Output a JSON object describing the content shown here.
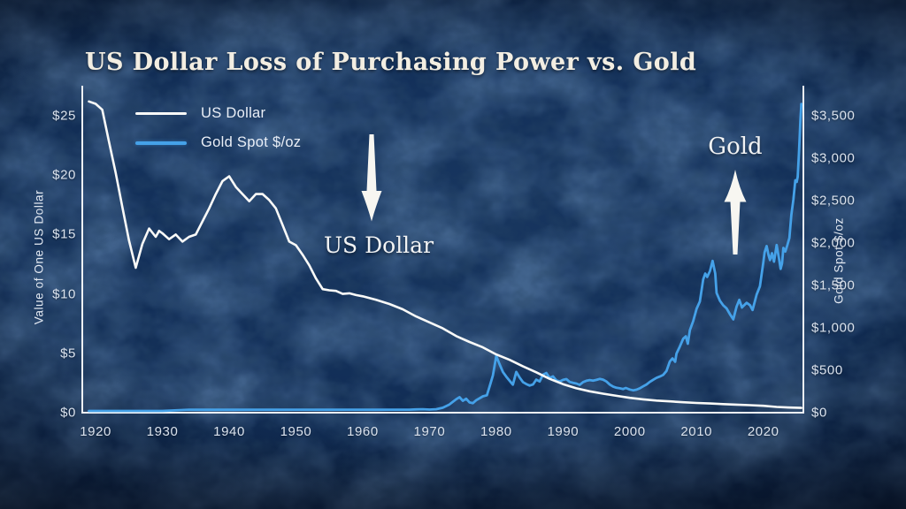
{
  "title": "US Dollar Loss of Purchasing Power vs. Gold",
  "legend": {
    "items": [
      {
        "label": "US Dollar",
        "color": "#fafaf8"
      },
      {
        "label": "Gold Spot $/oz",
        "color": "#45a1e8"
      }
    ]
  },
  "annotations": {
    "dollar": {
      "label": "US Dollar",
      "arrow": "down"
    },
    "gold": {
      "label": "Gold",
      "arrow": "up"
    }
  },
  "colors": {
    "background": "#12294d",
    "accent_blue": "#45a1e8",
    "line_white": "#fafaf8",
    "tick_text": "#dbe3ee",
    "title_text": "#f3eee2"
  },
  "chart_data": {
    "type": "line",
    "title": "US Dollar Loss of Purchasing Power vs. Gold",
    "grid": false,
    "legend_position": "top-left-inside",
    "x_range": [
      1918,
      2026
    ],
    "x_axis": {
      "ticks": [
        {
          "value": 1920,
          "label": "1920"
        },
        {
          "value": 1930,
          "label": "1930"
        },
        {
          "value": 1940,
          "label": "1940"
        },
        {
          "value": 1950,
          "label": "1950"
        },
        {
          "value": 1960,
          "label": "1960"
        },
        {
          "value": 1970,
          "label": "1970"
        },
        {
          "value": 1980,
          "label": "1980"
        },
        {
          "value": 1990,
          "label": "1990"
        },
        {
          "value": 2000,
          "label": "2000"
        },
        {
          "value": 2010,
          "label": "2010"
        },
        {
          "value": 2020,
          "label": "2020"
        }
      ]
    },
    "left_axis": {
      "label": "Value of One US Dollar",
      "max": 27.3,
      "ticks": [
        {
          "value": 25,
          "label": "$25"
        },
        {
          "value": 20,
          "label": "$20"
        },
        {
          "value": 15,
          "label": "$15"
        },
        {
          "value": 10,
          "label": "$10"
        },
        {
          "value": 5,
          "label": "$5"
        },
        {
          "value": 0,
          "label": "$0"
        }
      ]
    },
    "right_axis": {
      "label": "Gold Spot $/oz",
      "max": 3823,
      "ticks": [
        {
          "value": 3500,
          "label": "$3,500"
        },
        {
          "value": 3000,
          "label": "$3,000"
        },
        {
          "value": 2500,
          "label": "$2,500"
        },
        {
          "value": 2000,
          "label": "$2,000"
        },
        {
          "value": 1500,
          "label": "$1,500"
        },
        {
          "value": 1000,
          "label": "$1,000"
        },
        {
          "value": 500,
          "label": "$500"
        },
        {
          "value": 0,
          "label": "$0"
        }
      ]
    },
    "series": [
      {
        "name": "US Dollar",
        "axis": "left",
        "color": "#fafaf8",
        "width": 2.6,
        "points": [
          [
            1919,
            26.2
          ],
          [
            1920,
            26.0
          ],
          [
            1921,
            25.5
          ],
          [
            1922,
            22.8
          ],
          [
            1923,
            20.2
          ],
          [
            1924,
            17.3
          ],
          [
            1925,
            14.5
          ],
          [
            1926,
            12.2
          ],
          [
            1927,
            14.2
          ],
          [
            1928,
            15.5
          ],
          [
            1929,
            14.8
          ],
          [
            1929.5,
            15.3
          ],
          [
            1930,
            15.1
          ],
          [
            1931,
            14.6
          ],
          [
            1932,
            15.0
          ],
          [
            1933,
            14.4
          ],
          [
            1934,
            14.8
          ],
          [
            1935,
            15.0
          ],
          [
            1936,
            16.1
          ],
          [
            1937,
            17.2
          ],
          [
            1938,
            18.4
          ],
          [
            1939,
            19.5
          ],
          [
            1940,
            19.9
          ],
          [
            1941,
            19.0
          ],
          [
            1942,
            18.4
          ],
          [
            1943,
            17.8
          ],
          [
            1944,
            18.4
          ],
          [
            1945,
            18.4
          ],
          [
            1946,
            17.9
          ],
          [
            1947,
            17.2
          ],
          [
            1948,
            15.8
          ],
          [
            1949,
            14.4
          ],
          [
            1950,
            14.1
          ],
          [
            1951,
            13.3
          ],
          [
            1952,
            12.4
          ],
          [
            1953,
            11.3
          ],
          [
            1954,
            10.4
          ],
          [
            1955,
            10.3
          ],
          [
            1956,
            10.25
          ],
          [
            1957,
            10.0
          ],
          [
            1958,
            10.05
          ],
          [
            1959,
            9.9
          ],
          [
            1960,
            9.8
          ],
          [
            1962,
            9.5
          ],
          [
            1964,
            9.15
          ],
          [
            1966,
            8.7
          ],
          [
            1968,
            8.1
          ],
          [
            1970,
            7.6
          ],
          [
            1972,
            7.1
          ],
          [
            1974,
            6.45
          ],
          [
            1976,
            5.95
          ],
          [
            1978,
            5.5
          ],
          [
            1980,
            4.9
          ],
          [
            1982,
            4.45
          ],
          [
            1984,
            3.9
          ],
          [
            1986,
            3.4
          ],
          [
            1988,
            2.85
          ],
          [
            1990,
            2.4
          ],
          [
            1992,
            2.05
          ],
          [
            1994,
            1.8
          ],
          [
            1996,
            1.6
          ],
          [
            1998,
            1.42
          ],
          [
            2000,
            1.25
          ],
          [
            2002,
            1.12
          ],
          [
            2004,
            1.02
          ],
          [
            2006,
            0.95
          ],
          [
            2008,
            0.88
          ],
          [
            2010,
            0.82
          ],
          [
            2012,
            0.77
          ],
          [
            2014,
            0.72
          ],
          [
            2016,
            0.68
          ],
          [
            2018,
            0.63
          ],
          [
            2020,
            0.58
          ],
          [
            2022,
            0.48
          ],
          [
            2024,
            0.43
          ],
          [
            2025.7,
            0.4
          ]
        ]
      },
      {
        "name": "Gold Spot $/oz",
        "axis": "right",
        "color": "#45a1e8",
        "width": 2.8,
        "points": [
          [
            1919,
            21
          ],
          [
            1930,
            21
          ],
          [
            1934,
            35
          ],
          [
            1940,
            34
          ],
          [
            1950,
            35
          ],
          [
            1960,
            35
          ],
          [
            1967,
            35
          ],
          [
            1968,
            39
          ],
          [
            1969,
            41
          ],
          [
            1970,
            36
          ],
          [
            1971,
            41
          ],
          [
            1972,
            58
          ],
          [
            1973,
            97
          ],
          [
            1974,
            158
          ],
          [
            1974.5,
            183
          ],
          [
            1975,
            140
          ],
          [
            1975.5,
            165
          ],
          [
            1976,
            121
          ],
          [
            1976.5,
            112
          ],
          [
            1977,
            147
          ],
          [
            1978,
            193
          ],
          [
            1978.6,
            205
          ],
          [
            1979,
            306
          ],
          [
            1979.5,
            440
          ],
          [
            1980,
            668
          ],
          [
            1980.4,
            590
          ],
          [
            1981,
            480
          ],
          [
            1981.5,
            425
          ],
          [
            1982,
            376
          ],
          [
            1982.5,
            330
          ],
          [
            1983,
            480
          ],
          [
            1983.5,
            415
          ],
          [
            1984,
            360
          ],
          [
            1984.5,
            338
          ],
          [
            1985,
            320
          ],
          [
            1985.5,
            332
          ],
          [
            1986,
            390
          ],
          [
            1986.5,
            368
          ],
          [
            1987,
            448
          ],
          [
            1987.5,
            468
          ],
          [
            1988,
            410
          ],
          [
            1988.5,
            428
          ],
          [
            1989,
            381
          ],
          [
            1989.5,
            368
          ],
          [
            1990,
            386
          ],
          [
            1990.5,
            396
          ],
          [
            1991,
            362
          ],
          [
            1991.5,
            352
          ],
          [
            1992,
            344
          ],
          [
            1992.5,
            328
          ],
          [
            1993,
            360
          ],
          [
            1993.5,
            376
          ],
          [
            1994,
            384
          ],
          [
            1994.5,
            378
          ],
          [
            1995,
            386
          ],
          [
            1995.5,
            398
          ],
          [
            1996,
            390
          ],
          [
            1996.5,
            368
          ],
          [
            1997,
            331
          ],
          [
            1997.5,
            308
          ],
          [
            1998,
            294
          ],
          [
            1998.5,
            288
          ],
          [
            1999,
            279
          ],
          [
            1999.4,
            292
          ],
          [
            2000,
            273
          ],
          [
            2000.5,
            264
          ],
          [
            2001,
            271
          ],
          [
            2001.5,
            288
          ],
          [
            2002,
            310
          ],
          [
            2002.5,
            332
          ],
          [
            2003,
            363
          ],
          [
            2003.5,
            388
          ],
          [
            2004,
            410
          ],
          [
            2004.5,
            426
          ],
          [
            2005,
            445
          ],
          [
            2005.5,
            492
          ],
          [
            2006,
            604
          ],
          [
            2006.4,
            640
          ],
          [
            2006.8,
            600
          ],
          [
            2007,
            697
          ],
          [
            2007.5,
            780
          ],
          [
            2008,
            872
          ],
          [
            2008.4,
            900
          ],
          [
            2008.7,
            812
          ],
          [
            2009,
            972
          ],
          [
            2009.5,
            1080
          ],
          [
            2010,
            1224
          ],
          [
            2010.5,
            1310
          ],
          [
            2011,
            1571
          ],
          [
            2011.3,
            1640
          ],
          [
            2011.6,
            1600
          ],
          [
            2012,
            1669
          ],
          [
            2012.4,
            1790
          ],
          [
            2012.8,
            1640
          ],
          [
            2013,
            1411
          ],
          [
            2013.5,
            1320
          ],
          [
            2014,
            1266
          ],
          [
            2014.5,
            1230
          ],
          [
            2015,
            1160
          ],
          [
            2015.5,
            1100
          ],
          [
            2016,
            1250
          ],
          [
            2016.4,
            1330
          ],
          [
            2016.8,
            1240
          ],
          [
            2017,
            1257
          ],
          [
            2017.5,
            1295
          ],
          [
            2018,
            1268
          ],
          [
            2018.4,
            1210
          ],
          [
            2019,
            1393
          ],
          [
            2019.5,
            1490
          ],
          [
            2020,
            1770
          ],
          [
            2020.2,
            1890
          ],
          [
            2020.5,
            1965
          ],
          [
            2020.8,
            1850
          ],
          [
            2021,
            1799
          ],
          [
            2021.3,
            1880
          ],
          [
            2021.6,
            1780
          ],
          [
            2022,
            1976
          ],
          [
            2022.3,
            1840
          ],
          [
            2022.6,
            1695
          ],
          [
            2022.8,
            1760
          ],
          [
            2023,
            1943
          ],
          [
            2023.3,
            1900
          ],
          [
            2023.6,
            1975
          ],
          [
            2023.9,
            2060
          ],
          [
            2024.2,
            2330
          ],
          [
            2024.5,
            2510
          ],
          [
            2024.8,
            2740
          ],
          [
            2025,
            2720
          ],
          [
            2025.15,
            2780
          ],
          [
            2025.35,
            3080
          ],
          [
            2025.55,
            3440
          ],
          [
            2025.7,
            3640
          ]
        ]
      }
    ]
  }
}
